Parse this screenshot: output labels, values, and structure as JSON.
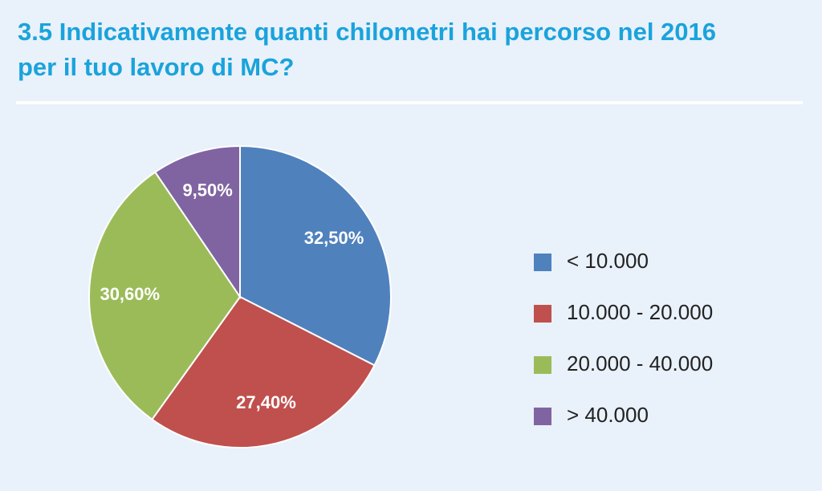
{
  "chart_data": {
    "type": "pie",
    "title": "3.5 Indicativamente quanti chilometri hai percorso nel 2016 per il tuo lavoro di MC?",
    "categories": [
      "< 10.000",
      "10.000 - 20.000",
      "20.000 - 40.000",
      "> 40.000"
    ],
    "values": [
      32.5,
      27.4,
      30.6,
      9.5
    ],
    "value_labels": [
      "32,50%",
      "27,40%",
      "30,60%",
      "9,50%"
    ],
    "colors": [
      "#4f81bd",
      "#c0504d",
      "#9bbb59",
      "#8064a2"
    ],
    "legend": "right"
  }
}
